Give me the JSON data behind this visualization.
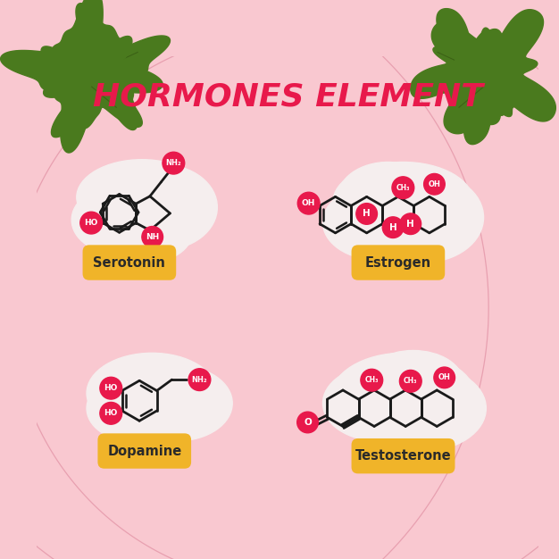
{
  "title": "HORMONES ELEMENT",
  "title_color": "#e8194b",
  "title_fontsize": 26,
  "bg_color": "#f9c8d0",
  "blob_color": "#f5eeee",
  "node_color": "#e8194b",
  "node_text_color": "#ffffff",
  "bond_color": "#1a1a1a",
  "label_bg_color": "#f0b429",
  "label_text_color": "#2a2a2a",
  "labels": [
    "Serotonin",
    "Estrogen",
    "Dopamine",
    "Testosterone"
  ],
  "leaf_color": "#4a7a1e",
  "leaf_dark_color": "#3a5f15",
  "vein_color": "#e8a0b0"
}
